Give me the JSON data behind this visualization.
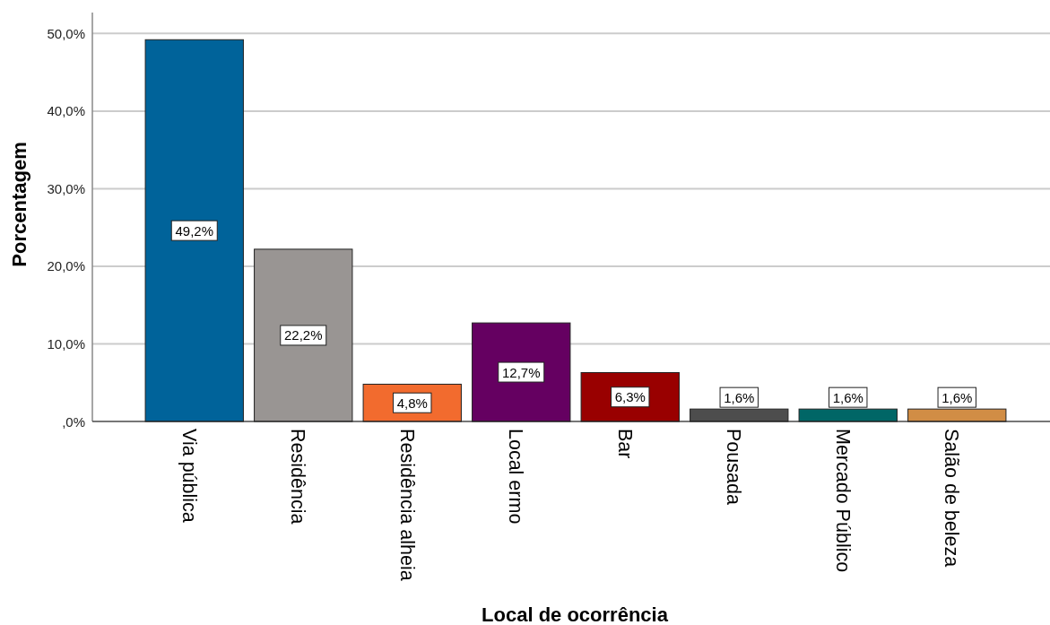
{
  "chart_data": {
    "type": "bar",
    "xlabel": "Local de ocorrência",
    "ylabel": "Porcentagem",
    "categories": [
      "Via pública",
      "Residência",
      "Residência alheia",
      "Local ermo",
      "Bar",
      "Pousada",
      "Mercado Público",
      "Salão de beleza"
    ],
    "values": [
      49.2,
      22.2,
      4.8,
      12.7,
      6.3,
      1.6,
      1.6,
      1.6
    ],
    "colors": [
      "#00639a",
      "#999593",
      "#f26b2e",
      "#650061",
      "#990000",
      "#4d4d4d",
      "#006666",
      "#d18d45"
    ],
    "value_labels": [
      "49,2%",
      "22,2%",
      "4,8%",
      "12,7%",
      "6,3%",
      "1,6%",
      "1,6%",
      "1,6%"
    ],
    "ylim": [
      0,
      52.7
    ],
    "yticks": [
      {
        "value": 0,
        "label": ",0%"
      },
      {
        "value": 10,
        "label": "10,0%"
      },
      {
        "value": 20,
        "label": "20,0%"
      },
      {
        "value": 30,
        "label": "30,0%"
      },
      {
        "value": 40,
        "label": "40,0%"
      },
      {
        "value": 50,
        "label": "50,0%"
      }
    ],
    "grid": "y"
  }
}
